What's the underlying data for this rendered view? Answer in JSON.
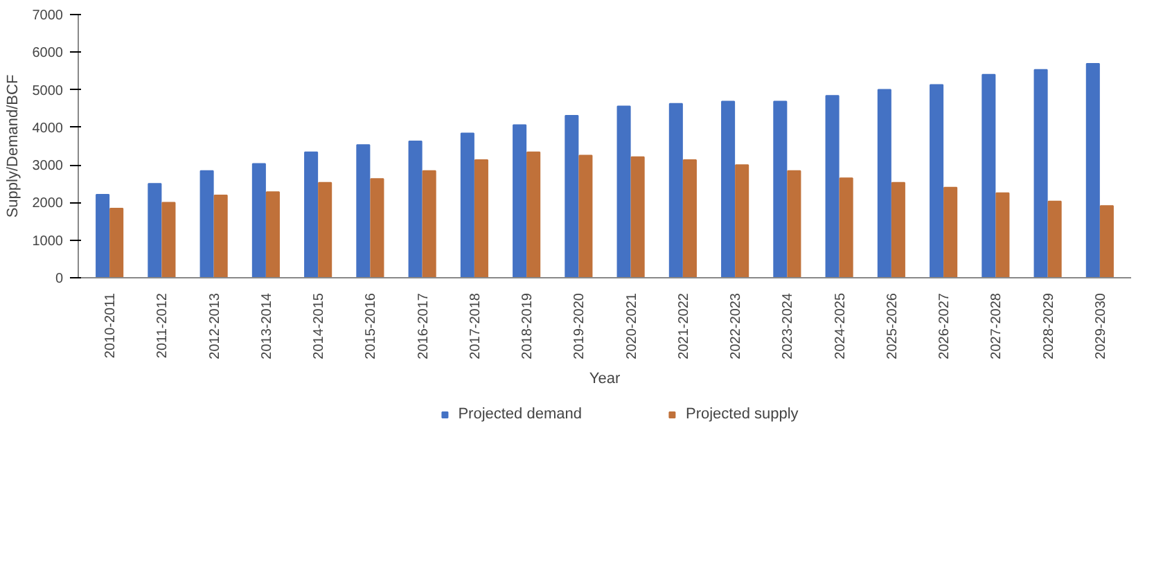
{
  "chart_data": {
    "type": "bar",
    "xlabel": "Year",
    "ylabel": "Supply/Demand/BCF",
    "categories": [
      "2010-2011",
      "2011-2012",
      "2012-2013",
      "2013-2014",
      "2014-2015",
      "2015-2016",
      "2016-2017",
      "2017-2018",
      "2018-2019",
      "2019-2020",
      "2020-2021",
      "2021-2022",
      "2022-2023",
      "2023-2024",
      "2024-2025",
      "2025-2026",
      "2026-2027",
      "2027-2028",
      "2028-2029",
      "2029-2030"
    ],
    "series": [
      {
        "name": "Projected demand",
        "color": "#4472c4",
        "values": [
          2210,
          2500,
          2840,
          3030,
          3340,
          3530,
          3630,
          3840,
          4060,
          4310,
          4560,
          4630,
          4690,
          4690,
          4840,
          5000,
          5130,
          5400,
          5530,
          5690
        ]
      },
      {
        "name": "Projected supply",
        "color": "#c0713a",
        "values": [
          1840,
          2000,
          2190,
          2280,
          2530,
          2630,
          2840,
          3130,
          3340,
          3250,
          3210,
          3130,
          3000,
          2840,
          2650,
          2530,
          2400,
          2250,
          2030,
          1910
        ]
      }
    ],
    "ylim": [
      0,
      7000
    ],
    "yticks": [
      0,
      1000,
      2000,
      3000,
      4000,
      5000,
      6000,
      7000
    ],
    "grid": false,
    "legend": "bottom"
  }
}
